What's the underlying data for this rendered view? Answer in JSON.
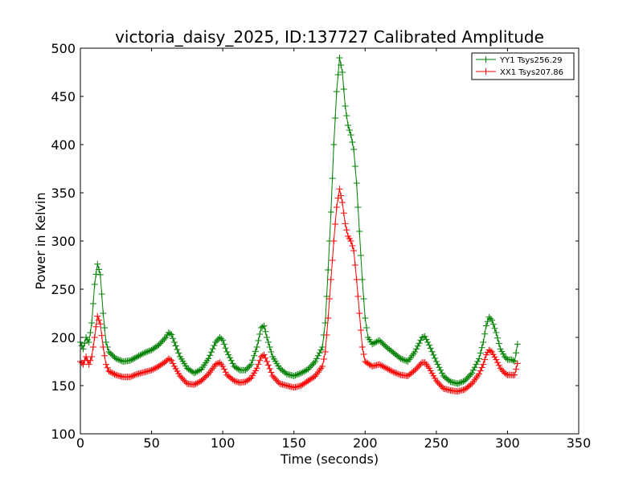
{
  "chart_data": {
    "type": "line",
    "title": "victoria_daisy_2025, ID:137727 Calibrated Amplitude",
    "xlabel": "Time (seconds)",
    "ylabel": "Power in Kelvin",
    "xlim": [
      0,
      350
    ],
    "ylim": [
      100,
      500
    ],
    "xticks": [
      0,
      50,
      100,
      150,
      200,
      250,
      300,
      350
    ],
    "yticks": [
      100,
      150,
      200,
      250,
      300,
      350,
      400,
      450,
      500
    ],
    "grid": false,
    "legend_position": "top-right",
    "marker": "+",
    "series": [
      {
        "name": "YY1 Tsys256.29",
        "color": "#008000",
        "points": [
          [
            0,
            195
          ],
          [
            2,
            188
          ],
          [
            4,
            200
          ],
          [
            6,
            195
          ],
          [
            8,
            215
          ],
          [
            10,
            255
          ],
          [
            12,
            276
          ],
          [
            14,
            265
          ],
          [
            16,
            225
          ],
          [
            18,
            195
          ],
          [
            20,
            185
          ],
          [
            25,
            178
          ],
          [
            30,
            175
          ],
          [
            35,
            176
          ],
          [
            40,
            180
          ],
          [
            45,
            184
          ],
          [
            50,
            187
          ],
          [
            55,
            192
          ],
          [
            60,
            200
          ],
          [
            62,
            205
          ],
          [
            64,
            203
          ],
          [
            66,
            195
          ],
          [
            70,
            180
          ],
          [
            75,
            168
          ],
          [
            80,
            163
          ],
          [
            85,
            167
          ],
          [
            90,
            178
          ],
          [
            95,
            195
          ],
          [
            98,
            200
          ],
          [
            100,
            197
          ],
          [
            103,
            185
          ],
          [
            108,
            170
          ],
          [
            112,
            166
          ],
          [
            116,
            166
          ],
          [
            120,
            172
          ],
          [
            124,
            190
          ],
          [
            127,
            210
          ],
          [
            129,
            212
          ],
          [
            131,
            200
          ],
          [
            135,
            180
          ],
          [
            140,
            168
          ],
          [
            145,
            162
          ],
          [
            150,
            160
          ],
          [
            155,
            163
          ],
          [
            160,
            167
          ],
          [
            165,
            175
          ],
          [
            170,
            190
          ],
          [
            172,
            215
          ],
          [
            174,
            270
          ],
          [
            176,
            330
          ],
          [
            178,
            400
          ],
          [
            180,
            455
          ],
          [
            182,
            490
          ],
          [
            184,
            475
          ],
          [
            186,
            440
          ],
          [
            188,
            420
          ],
          [
            190,
            410
          ],
          [
            192,
            395
          ],
          [
            194,
            360
          ],
          [
            196,
            310
          ],
          [
            198,
            260
          ],
          [
            200,
            220
          ],
          [
            202,
            200
          ],
          [
            205,
            193
          ],
          [
            210,
            197
          ],
          [
            215,
            190
          ],
          [
            220,
            184
          ],
          [
            225,
            178
          ],
          [
            230,
            175
          ],
          [
            235,
            185
          ],
          [
            240,
            200
          ],
          [
            242,
            201
          ],
          [
            245,
            192
          ],
          [
            250,
            175
          ],
          [
            255,
            160
          ],
          [
            260,
            154
          ],
          [
            265,
            152
          ],
          [
            270,
            155
          ],
          [
            275,
            163
          ],
          [
            280,
            178
          ],
          [
            283,
            195
          ],
          [
            285,
            212
          ],
          [
            287,
            221
          ],
          [
            289,
            218
          ],
          [
            292,
            205
          ],
          [
            295,
            188
          ],
          [
            298,
            180
          ],
          [
            300,
            177
          ],
          [
            303,
            177
          ],
          [
            305,
            175
          ],
          [
            307,
            193
          ]
        ]
      },
      {
        "name": "XX1 Tsys207.86",
        "color": "#ff0000",
        "points": [
          [
            0,
            175
          ],
          [
            2,
            172
          ],
          [
            4,
            180
          ],
          [
            6,
            172
          ],
          [
            8,
            180
          ],
          [
            10,
            200
          ],
          [
            12,
            222
          ],
          [
            14,
            214
          ],
          [
            16,
            190
          ],
          [
            18,
            172
          ],
          [
            20,
            165
          ],
          [
            25,
            161
          ],
          [
            30,
            159
          ],
          [
            35,
            159
          ],
          [
            40,
            162
          ],
          [
            45,
            164
          ],
          [
            50,
            166
          ],
          [
            55,
            170
          ],
          [
            60,
            175
          ],
          [
            62,
            178
          ],
          [
            64,
            176
          ],
          [
            66,
            170
          ],
          [
            70,
            160
          ],
          [
            75,
            152
          ],
          [
            80,
            151
          ],
          [
            85,
            155
          ],
          [
            90,
            162
          ],
          [
            95,
            172
          ],
          [
            98,
            174
          ],
          [
            100,
            170
          ],
          [
            103,
            161
          ],
          [
            108,
            155
          ],
          [
            112,
            153
          ],
          [
            116,
            154
          ],
          [
            120,
            158
          ],
          [
            124,
            168
          ],
          [
            127,
            180
          ],
          [
            129,
            182
          ],
          [
            131,
            175
          ],
          [
            135,
            160
          ],
          [
            140,
            152
          ],
          [
            145,
            150
          ],
          [
            150,
            148
          ],
          [
            155,
            150
          ],
          [
            160,
            155
          ],
          [
            165,
            160
          ],
          [
            170,
            170
          ],
          [
            172,
            185
          ],
          [
            174,
            220
          ],
          [
            176,
            260
          ],
          [
            178,
            300
          ],
          [
            180,
            335
          ],
          [
            182,
            354
          ],
          [
            184,
            340
          ],
          [
            186,
            318
          ],
          [
            188,
            305
          ],
          [
            190,
            300
          ],
          [
            192,
            290
          ],
          [
            194,
            260
          ],
          [
            196,
            225
          ],
          [
            198,
            190
          ],
          [
            200,
            175
          ],
          [
            205,
            170
          ],
          [
            210,
            172
          ],
          [
            215,
            168
          ],
          [
            220,
            164
          ],
          [
            225,
            161
          ],
          [
            230,
            160
          ],
          [
            235,
            166
          ],
          [
            240,
            174
          ],
          [
            242,
            174
          ],
          [
            245,
            168
          ],
          [
            250,
            155
          ],
          [
            255,
            147
          ],
          [
            260,
            145
          ],
          [
            265,
            144
          ],
          [
            270,
            146
          ],
          [
            275,
            152
          ],
          [
            280,
            162
          ],
          [
            283,
            172
          ],
          [
            285,
            182
          ],
          [
            287,
            187
          ],
          [
            289,
            185
          ],
          [
            292,
            177
          ],
          [
            295,
            168
          ],
          [
            298,
            163
          ],
          [
            300,
            161
          ],
          [
            303,
            161
          ],
          [
            305,
            161
          ],
          [
            307,
            173
          ]
        ]
      }
    ]
  }
}
